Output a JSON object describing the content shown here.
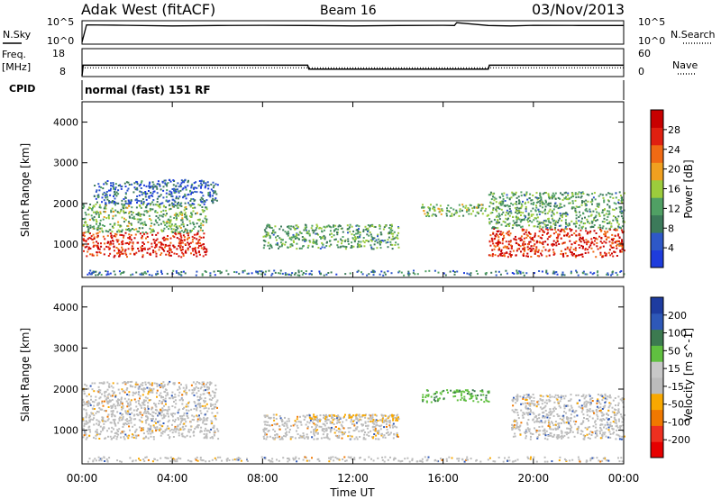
{
  "header": {
    "site": "Adak West (fitACF)",
    "beam": "Beam 16",
    "date": "03/Nov/2013"
  },
  "labels": {
    "nsky": "N.Sky",
    "nsearch": "N.Search",
    "freq": "Freq.",
    "freq_unit": "[MHz]",
    "cpid": "CPID",
    "nave": "Nave",
    "cpid_value": "normal (fast) 151 RF",
    "xlabel": "Time UT"
  },
  "colors": {
    "power": [
      "#1e3cdc",
      "#2e58c8",
      "#3c7a5a",
      "#50a064",
      "#9ccc3c",
      "#f0a020",
      "#f06a14",
      "#e02010",
      "#c80000"
    ],
    "velocity": [
      "#e60000",
      "#ee3020",
      "#f07800",
      "#f8a800",
      "#bcbcbc",
      "#c8c8c8",
      "#60c040",
      "#3c7a50",
      "#2e58b8",
      "#1e3ca0"
    ]
  },
  "chart_data": [
    {
      "type": "line",
      "title": "N.Sky / N.Search",
      "y_ticks_left": [
        "10^5",
        "10^0"
      ],
      "y_ticks_right": [
        "10^5",
        "10^0"
      ],
      "xlim": [
        0,
        24
      ],
      "series": [
        {
          "name": "N.Sky",
          "x": [
            0,
            0.2,
            2,
            4,
            6,
            8,
            10,
            12,
            14,
            16,
            16.5,
            16.6,
            18,
            19,
            20,
            22,
            24
          ],
          "y": [
            0.05,
            0.85,
            0.83,
            0.8,
            0.82,
            0.83,
            0.82,
            0.8,
            0.82,
            0.83,
            0.82,
            0.95,
            0.82,
            0.8,
            0.83,
            0.82,
            0.82
          ]
        },
        {
          "name": "N.Search",
          "x": [],
          "y": []
        }
      ]
    },
    {
      "type": "line",
      "title": "Freq / Nave",
      "ylabel": "Freq. [MHz]",
      "y_ticks_left": [
        "18",
        "8"
      ],
      "y_ticks_right": [
        "60",
        "0"
      ],
      "ylim_left": [
        8,
        18
      ],
      "ylim_right": [
        0,
        60
      ],
      "xlim": [
        0,
        24
      ],
      "series": [
        {
          "name": "Freq",
          "x": [
            0,
            0.05,
            10,
            10.05,
            18,
            18.05,
            24
          ],
          "y": [
            8,
            12,
            12,
            10.5,
            10.5,
            12,
            12
          ]
        },
        {
          "name": "Nave",
          "x": [
            0,
            24
          ],
          "y": [
            18,
            18
          ]
        }
      ]
    },
    {
      "type": "heatmap",
      "ylabel": "Slant Range [km]",
      "colorbar_label": "Power [dB]",
      "colorbar_ticks": [
        "28",
        "24",
        "20",
        "16",
        "12",
        "8",
        "4"
      ],
      "y_ticks": [
        "4000",
        "3000",
        "2000",
        "1000"
      ],
      "ylim": [
        180,
        4500
      ],
      "xlim": [
        0,
        24
      ],
      "regions": [
        {
          "t0": 0,
          "t1": 5.5,
          "r0": 700,
          "r1": 1300,
          "level": 0.9
        },
        {
          "t0": 0,
          "t1": 5.5,
          "r0": 1300,
          "r1": 2000,
          "level": 0.4
        },
        {
          "t0": 0.5,
          "t1": 6,
          "r0": 2000,
          "r1": 2600,
          "level": 0.15
        },
        {
          "t0": 8,
          "t1": 14,
          "r0": 900,
          "r1": 1500,
          "level": 0.35
        },
        {
          "t0": 15,
          "t1": 18,
          "r0": 1700,
          "r1": 2000,
          "level": 0.4
        },
        {
          "t0": 18,
          "t1": 24,
          "r0": 700,
          "r1": 1400,
          "level": 0.9
        },
        {
          "t0": 18,
          "t1": 24,
          "r0": 1400,
          "r1": 2300,
          "level": 0.35
        }
      ]
    },
    {
      "type": "heatmap",
      "ylabel": "Slant Range [km]",
      "colorbar_label": "Velocity [m s^-1]",
      "colorbar_ticks": [
        "200",
        "100",
        "50",
        "15",
        "-15",
        "-50",
        "-100",
        "-200"
      ],
      "y_ticks": [
        "4000",
        "3000",
        "2000",
        "1000"
      ],
      "ylim": [
        180,
        4500
      ],
      "xlim": [
        0,
        24
      ],
      "x_ticks": [
        "00:00",
        "04:00",
        "08:00",
        "12:00",
        "16:00",
        "20:00",
        "00:00"
      ],
      "regions": [
        {
          "t0": 0,
          "t1": 6,
          "r0": 800,
          "r1": 2200,
          "vel": 0
        },
        {
          "t0": 8,
          "t1": 14,
          "r0": 800,
          "r1": 1400,
          "vel": 0
        },
        {
          "t0": 10,
          "t1": 14,
          "r0": 1200,
          "r1": 1400,
          "vel": -50
        },
        {
          "t0": 15,
          "t1": 18,
          "r0": 1700,
          "r1": 2000,
          "vel": 50
        },
        {
          "t0": 19,
          "t1": 24,
          "r0": 800,
          "r1": 1900,
          "vel": 0
        }
      ]
    }
  ]
}
